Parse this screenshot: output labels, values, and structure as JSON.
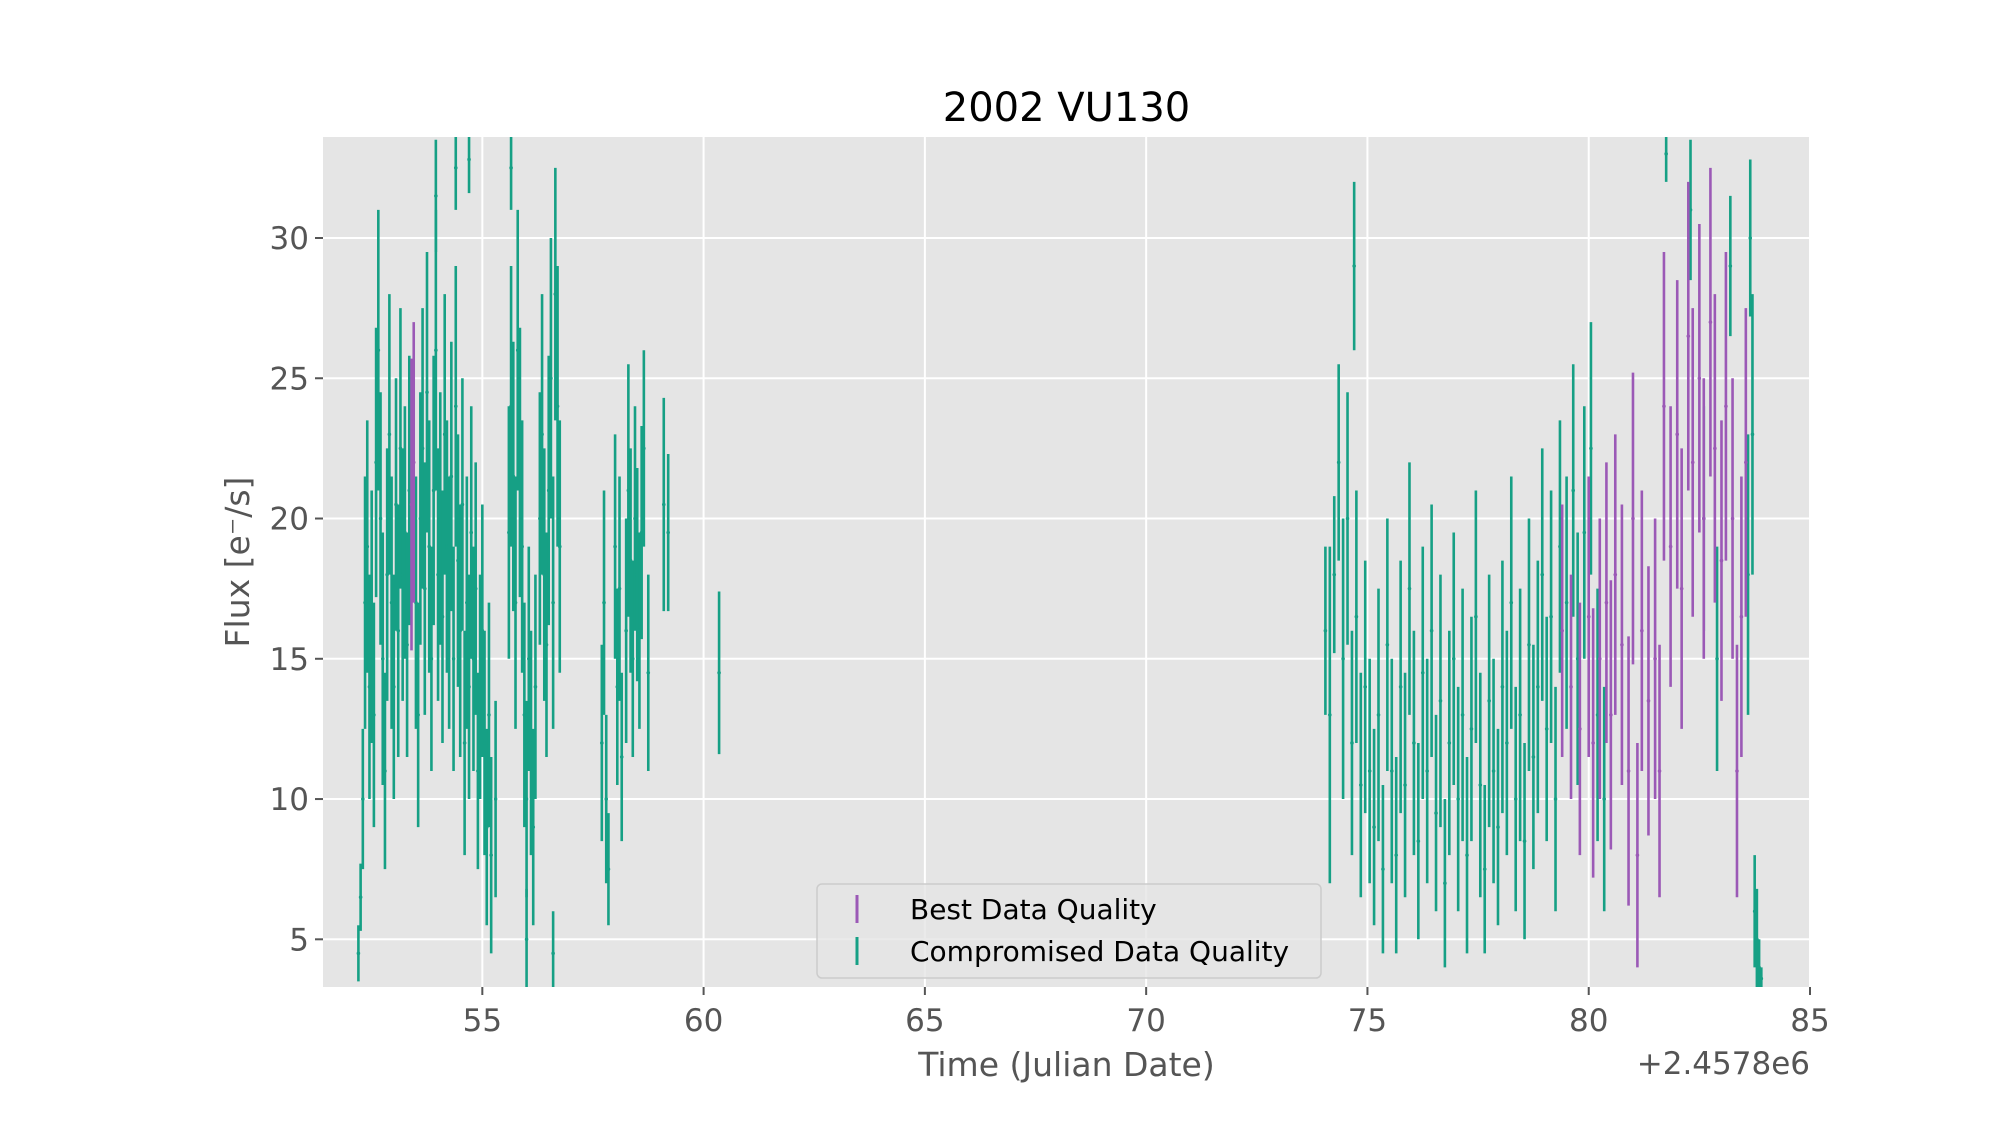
{
  "chart_data": {
    "type": "errorbar-scatter",
    "title": "2002 VU130",
    "xlabel": "Time (Julian Date)",
    "ylabel": "Flux [e⁻/s]",
    "x_offset_label": "+2.4578e6",
    "xlim": [
      51.4,
      85
    ],
    "ylim": [
      3.3,
      33.6
    ],
    "xticks": [
      55,
      60,
      65,
      70,
      75,
      80,
      85
    ],
    "yticks": [
      5,
      10,
      15,
      20,
      25,
      30
    ],
    "grid": true,
    "legend_placement": "lower-center",
    "colors": {
      "best": "#9b59b6",
      "compromised": "#16a085",
      "plot_background": "#e5e5e5",
      "grid": "#ffffff"
    },
    "series": [
      {
        "name": "Best Data Quality",
        "key": "best",
        "points": [
          [
            53.4,
            20.5,
            5.2
          ],
          [
            53.45,
            22.0,
            5.0
          ],
          [
            79.4,
            16.0,
            4.5
          ],
          [
            79.6,
            14.0,
            4.0
          ],
          [
            79.8,
            12.5,
            4.5
          ],
          [
            80.0,
            16.5,
            5.0
          ],
          [
            80.1,
            12.0,
            4.8
          ],
          [
            80.25,
            15.0,
            5.0
          ],
          [
            80.4,
            17.0,
            5.0
          ],
          [
            80.5,
            13.0,
            4.8
          ],
          [
            80.6,
            18.0,
            5.0
          ],
          [
            80.75,
            15.5,
            5.0
          ],
          [
            80.9,
            11.0,
            4.8
          ],
          [
            81.0,
            20.0,
            5.2
          ],
          [
            81.1,
            8.0,
            4.0
          ],
          [
            81.2,
            16.0,
            5.0
          ],
          [
            81.35,
            13.5,
            4.8
          ],
          [
            81.5,
            15.0,
            5.0
          ],
          [
            81.6,
            11.0,
            4.5
          ],
          [
            81.7,
            24.0,
            5.5
          ],
          [
            81.85,
            19.0,
            5.0
          ],
          [
            82.0,
            23.0,
            5.5
          ],
          [
            82.1,
            17.5,
            5.0
          ],
          [
            82.25,
            26.5,
            5.5
          ],
          [
            82.35,
            22.0,
            5.5
          ],
          [
            82.5,
            25.0,
            5.5
          ],
          [
            82.6,
            20.0,
            5.0
          ],
          [
            82.75,
            27.0,
            5.5
          ],
          [
            82.85,
            22.5,
            5.5
          ],
          [
            83.0,
            18.5,
            5.0
          ],
          [
            83.1,
            24.0,
            5.5
          ],
          [
            83.25,
            20.0,
            5.0
          ],
          [
            83.35,
            11.0,
            4.5
          ],
          [
            83.45,
            16.5,
            5.0
          ],
          [
            83.55,
            22.0,
            5.5
          ]
        ]
      },
      {
        "name": "Compromised Data Quality",
        "key": "compromised",
        "points": [
          [
            52.2,
            4.5,
            1.0
          ],
          [
            52.25,
            6.5,
            1.2
          ],
          [
            52.3,
            10.0,
            2.5
          ],
          [
            52.35,
            17.0,
            4.5
          ],
          [
            52.4,
            19.0,
            4.5
          ],
          [
            52.45,
            14.0,
            4.0
          ],
          [
            52.5,
            16.5,
            4.5
          ],
          [
            52.55,
            13.0,
            4.0
          ],
          [
            52.6,
            22.0,
            4.8
          ],
          [
            52.65,
            26.0,
            5.0
          ],
          [
            52.7,
            20.0,
            4.5
          ],
          [
            52.75,
            15.0,
            4.5
          ],
          [
            52.8,
            11.0,
            3.5
          ],
          [
            52.85,
            18.0,
            4.5
          ],
          [
            52.9,
            23.0,
            5.0
          ],
          [
            52.95,
            17.0,
            4.5
          ],
          [
            53.0,
            14.0,
            4.0
          ],
          [
            53.05,
            20.5,
            4.5
          ],
          [
            53.1,
            16.0,
            4.5
          ],
          [
            53.15,
            22.5,
            5.0
          ],
          [
            53.2,
            18.0,
            4.5
          ],
          [
            53.25,
            19.5,
            4.5
          ],
          [
            53.3,
            15.5,
            4.0
          ],
          [
            53.35,
            21.0,
            4.8
          ],
          [
            53.5,
            17.0,
            4.5
          ],
          [
            53.55,
            13.0,
            4.0
          ],
          [
            53.6,
            20.0,
            4.5
          ],
          [
            53.65,
            22.5,
            5.0
          ],
          [
            53.7,
            17.5,
            4.5
          ],
          [
            53.75,
            24.5,
            5.0
          ],
          [
            53.8,
            19.0,
            4.5
          ],
          [
            53.85,
            15.0,
            4.0
          ],
          [
            53.9,
            21.0,
            4.8
          ],
          [
            53.95,
            26.0,
            5.0
          ],
          [
            54.0,
            18.0,
            4.5
          ],
          [
            54.05,
            20.0,
            4.5
          ],
          [
            54.1,
            16.5,
            4.5
          ],
          [
            54.15,
            23.0,
            5.0
          ],
          [
            54.2,
            19.0,
            4.5
          ],
          [
            54.25,
            17.0,
            4.5
          ],
          [
            54.3,
            21.5,
            4.8
          ],
          [
            54.35,
            15.0,
            4.0
          ],
          [
            54.4,
            24.0,
            5.0
          ],
          [
            54.45,
            18.5,
            4.5
          ],
          [
            54.5,
            16.0,
            4.5
          ],
          [
            54.55,
            20.5,
            4.5
          ],
          [
            54.6,
            12.0,
            4.0
          ],
          [
            54.65,
            17.0,
            4.5
          ],
          [
            54.7,
            14.0,
            4.0
          ],
          [
            54.75,
            19.5,
            4.5
          ],
          [
            54.8,
            15.0,
            4.0
          ],
          [
            54.85,
            17.5,
            4.5
          ],
          [
            54.9,
            11.0,
            3.5
          ],
          [
            54.95,
            14.0,
            4.0
          ],
          [
            55.0,
            16.0,
            4.5
          ],
          [
            55.05,
            12.0,
            4.0
          ],
          [
            55.1,
            9.0,
            3.5
          ],
          [
            55.15,
            13.0,
            4.0
          ],
          [
            55.2,
            8.0,
            3.5
          ],
          [
            55.3,
            10.0,
            3.5
          ],
          [
            53.95,
            31.5,
            2.0
          ],
          [
            54.4,
            32.5,
            1.5
          ],
          [
            54.7,
            32.8,
            1.2
          ],
          [
            55.6,
            19.5,
            4.5
          ],
          [
            55.65,
            24.0,
            5.0
          ],
          [
            55.7,
            21.5,
            4.8
          ],
          [
            55.75,
            17.0,
            4.5
          ],
          [
            55.8,
            26.0,
            5.0
          ],
          [
            55.85,
            22.0,
            4.8
          ],
          [
            55.9,
            19.0,
            4.5
          ],
          [
            55.95,
            13.0,
            4.0
          ],
          [
            56.0,
            10.0,
            3.5
          ],
          [
            56.05,
            15.0,
            4.0
          ],
          [
            56.1,
            12.0,
            4.0
          ],
          [
            56.15,
            9.0,
            3.5
          ],
          [
            56.2,
            14.0,
            4.0
          ],
          [
            56.3,
            20.0,
            4.5
          ],
          [
            56.35,
            23.0,
            5.0
          ],
          [
            56.4,
            18.0,
            4.5
          ],
          [
            56.45,
            15.5,
            4.0
          ],
          [
            56.5,
            21.0,
            4.8
          ],
          [
            56.55,
            25.0,
            5.0
          ],
          [
            56.6,
            17.0,
            4.5
          ],
          [
            56.65,
            28.0,
            4.5
          ],
          [
            56.7,
            24.0,
            5.0
          ],
          [
            56.75,
            19.0,
            4.5
          ],
          [
            55.65,
            32.5,
            1.5
          ],
          [
            56.0,
            5.0,
            1.8
          ],
          [
            56.6,
            4.5,
            1.5
          ],
          [
            57.7,
            12.0,
            3.5
          ],
          [
            57.75,
            17.0,
            4.0
          ],
          [
            57.8,
            10.0,
            3.0
          ],
          [
            57.85,
            7.5,
            2.0
          ],
          [
            58.0,
            19.0,
            4.0
          ],
          [
            58.05,
            14.0,
            3.5
          ],
          [
            58.1,
            17.5,
            4.0
          ],
          [
            58.15,
            11.5,
            3.0
          ],
          [
            58.25,
            16.0,
            4.0
          ],
          [
            58.3,
            21.0,
            4.5
          ],
          [
            58.35,
            18.5,
            4.0
          ],
          [
            58.4,
            15.0,
            3.5
          ],
          [
            58.45,
            20.0,
            4.0
          ],
          [
            58.5,
            18.0,
            3.8
          ],
          [
            58.55,
            16.0,
            3.5
          ],
          [
            58.6,
            19.5,
            3.8
          ],
          [
            58.65,
            22.5,
            3.5
          ],
          [
            58.75,
            14.5,
            3.5
          ],
          [
            59.1,
            20.5,
            3.8
          ],
          [
            59.2,
            19.5,
            2.8
          ],
          [
            60.35,
            14.5,
            2.9
          ],
          [
            74.05,
            16.0,
            3.0
          ],
          [
            74.15,
            13.0,
            6.0
          ],
          [
            74.25,
            18.0,
            2.8
          ],
          [
            74.35,
            22.0,
            3.5
          ],
          [
            74.45,
            15.0,
            5.0
          ],
          [
            74.55,
            20.0,
            4.5
          ],
          [
            74.65,
            12.0,
            4.0
          ],
          [
            74.75,
            16.5,
            4.5
          ],
          [
            74.85,
            10.5,
            4.0
          ],
          [
            74.95,
            14.0,
            4.5
          ],
          [
            75.05,
            11.0,
            4.0
          ],
          [
            75.15,
            9.0,
            3.5
          ],
          [
            75.25,
            13.0,
            4.5
          ],
          [
            75.35,
            7.5,
            3.0
          ],
          [
            75.45,
            15.5,
            4.5
          ],
          [
            75.55,
            11.0,
            4.0
          ],
          [
            75.65,
            8.0,
            3.5
          ],
          [
            75.75,
            14.0,
            4.5
          ],
          [
            75.85,
            10.5,
            4.0
          ],
          [
            75.95,
            17.5,
            4.5
          ],
          [
            76.05,
            12.0,
            4.0
          ],
          [
            76.15,
            8.5,
            3.5
          ],
          [
            76.25,
            14.5,
            4.5
          ],
          [
            76.35,
            11.0,
            4.0
          ],
          [
            76.45,
            16.0,
            4.5
          ],
          [
            76.55,
            9.5,
            3.5
          ],
          [
            76.65,
            13.5,
            4.5
          ],
          [
            76.75,
            7.0,
            3.0
          ],
          [
            76.85,
            12.0,
            4.0
          ],
          [
            76.95,
            15.0,
            4.5
          ],
          [
            77.05,
            10.0,
            4.0
          ],
          [
            77.15,
            13.0,
            4.5
          ],
          [
            77.25,
            8.0,
            3.5
          ],
          [
            77.35,
            12.5,
            4.0
          ],
          [
            77.45,
            16.5,
            4.5
          ],
          [
            77.55,
            10.5,
            4.0
          ],
          [
            77.65,
            7.5,
            3.0
          ],
          [
            77.75,
            13.5,
            4.5
          ],
          [
            77.85,
            11.0,
            4.0
          ],
          [
            77.95,
            9.0,
            3.5
          ],
          [
            78.05,
            14.0,
            4.5
          ],
          [
            78.15,
            12.0,
            4.0
          ],
          [
            78.25,
            17.0,
            4.5
          ],
          [
            78.35,
            10.0,
            4.0
          ],
          [
            78.45,
            13.0,
            4.5
          ],
          [
            78.55,
            8.5,
            3.5
          ],
          [
            78.65,
            15.5,
            4.5
          ],
          [
            78.75,
            11.5,
            4.0
          ],
          [
            78.85,
            14.0,
            4.5
          ],
          [
            78.95,
            18.0,
            4.5
          ],
          [
            79.05,
            12.5,
            4.0
          ],
          [
            79.15,
            16.5,
            4.5
          ],
          [
            79.25,
            10.0,
            4.0
          ],
          [
            79.35,
            19.0,
            4.5
          ],
          [
            79.5,
            17.0,
            4.5
          ],
          [
            79.65,
            21.0,
            4.5
          ],
          [
            79.75,
            15.0,
            4.5
          ],
          [
            79.9,
            19.5,
            4.5
          ],
          [
            80.05,
            22.5,
            4.5
          ],
          [
            80.2,
            13.0,
            4.5
          ],
          [
            80.35,
            10.0,
            4.0
          ],
          [
            74.7,
            29.0,
            3.0
          ],
          [
            81.75,
            33.0,
            1.0
          ],
          [
            82.3,
            31.0,
            2.5
          ],
          [
            83.2,
            29.0,
            2.5
          ],
          [
            83.65,
            30.0,
            2.8
          ],
          [
            83.7,
            23.0,
            5.0
          ],
          [
            83.75,
            6.0,
            2.0
          ],
          [
            83.8,
            5.0,
            1.8
          ],
          [
            83.85,
            4.0,
            1.0
          ],
          [
            83.9,
            3.6,
            0.4
          ],
          [
            82.6,
            20.0,
            4.0
          ],
          [
            83.6,
            18.0,
            5.0
          ],
          [
            82.9,
            15.0,
            4.0
          ]
        ]
      }
    ]
  }
}
